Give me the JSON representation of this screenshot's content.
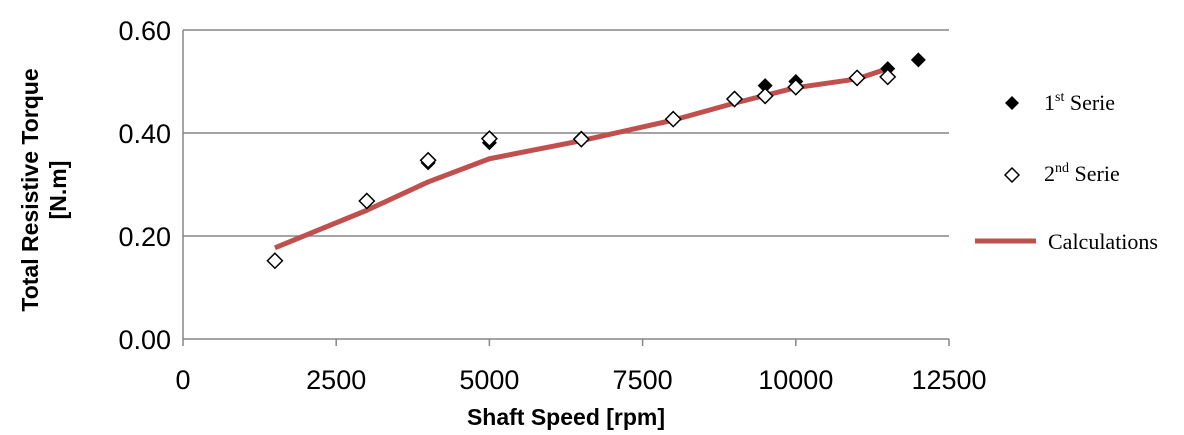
{
  "chart_data": {
    "type": "scatter",
    "title": "",
    "xlabel": "Shaft Speed [rpm]",
    "ylabel_lines": [
      "Total Resistive Torque",
      "[N.m]"
    ],
    "xlim": [
      0,
      12500
    ],
    "ylim": [
      0,
      0.6
    ],
    "x_ticks": [
      0,
      2500,
      5000,
      7500,
      10000,
      12500
    ],
    "x_tick_labels": [
      "0",
      "2500",
      "5000",
      "7500",
      "10000",
      "12500"
    ],
    "y_ticks": [
      0,
      0.2,
      0.4,
      0.6
    ],
    "y_tick_labels": [
      "0.00",
      "0.20",
      "0.40",
      "0.60"
    ],
    "grid": "horizontal",
    "legend_position": "right",
    "series": [
      {
        "name": "1st Serie",
        "legend_base": "1",
        "legend_sup": "st",
        "legend_rest": " Serie",
        "marker": "filled-diamond",
        "color": "#000000",
        "x": [
          1500,
          3000,
          4000,
          5000,
          6500,
          8000,
          9000,
          9500,
          10000,
          11000,
          11500,
          12000
        ],
        "y": [
          0.152,
          0.268,
          0.342,
          0.381,
          0.39,
          0.428,
          0.468,
          0.492,
          0.5,
          0.508,
          0.525,
          0.542
        ]
      },
      {
        "name": "2nd Serie",
        "legend_base": "2",
        "legend_sup": "nd",
        "legend_rest": " Serie",
        "marker": "hollow-diamond",
        "color": "#000000",
        "x": [
          1500,
          3000,
          4000,
          5000,
          6500,
          8000,
          9000,
          9500,
          10000,
          11000,
          11500
        ],
        "y": [
          0.152,
          0.268,
          0.347,
          0.389,
          0.388,
          0.427,
          0.466,
          0.472,
          0.489,
          0.507,
          0.509
        ]
      },
      {
        "name": "Calculations",
        "marker": "line",
        "color": "#c0504d",
        "x": [
          1500,
          3000,
          4000,
          5000,
          6500,
          8000,
          9000,
          10000,
          11000,
          11500
        ],
        "y": [
          0.177,
          0.25,
          0.305,
          0.35,
          0.385,
          0.425,
          0.458,
          0.488,
          0.505,
          0.525
        ]
      }
    ]
  }
}
